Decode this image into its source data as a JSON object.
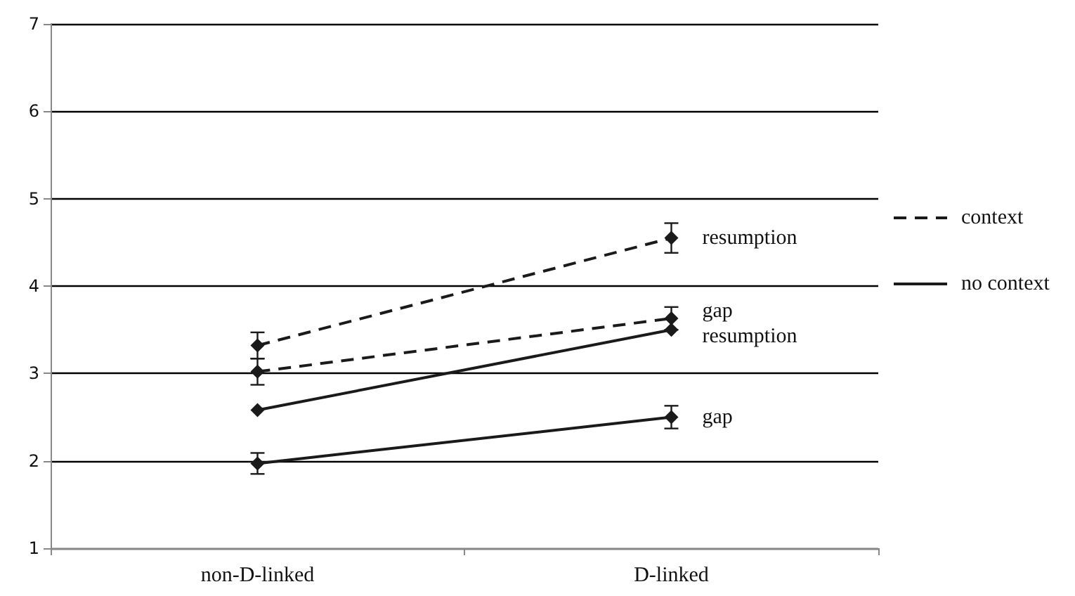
{
  "chart_data": {
    "type": "line",
    "categories": [
      "non-D-linked",
      "D-linked"
    ],
    "series": [
      {
        "name": "resumption",
        "color": "#1a1a1a",
        "line_style": "dashed",
        "values": [
          3.32,
          4.55
        ],
        "errors": [
          0.15,
          0.17
        ]
      },
      {
        "name": "gap",
        "color": "#1a1a1a",
        "line_style": "dashed",
        "values": [
          3.02,
          3.63
        ],
        "errors": [
          0.15,
          0.13
        ]
      },
      {
        "name": "resumption",
        "color": "#1a1a1a",
        "line_style": "solid",
        "values": [
          2.58,
          3.5
        ],
        "errors": [
          null,
          null
        ]
      },
      {
        "name": "gap",
        "color": "#1a1a1a",
        "line_style": "solid",
        "values": [
          1.97,
          2.5
        ],
        "errors": [
          0.12,
          0.13
        ]
      }
    ],
    "legend": "right",
    "annotations": [
      "context",
      "no context"
    ],
    "ylim": [
      1,
      7
    ],
    "yticks": [
      1,
      2,
      3,
      4,
      5,
      6,
      7
    ],
    "grid": "y",
    "marker": "diamond"
  }
}
